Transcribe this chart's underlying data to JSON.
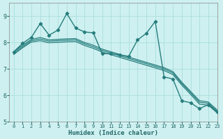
{
  "background_color": "#cef0f0",
  "grid_color": "#aadddd",
  "line_color": "#267d7d",
  "xlabel": "Humidex (Indice chaleur)",
  "xlim": [
    -0.5,
    23
  ],
  "ylim": [
    5,
    9.5
  ],
  "yticks": [
    5,
    6,
    7,
    8,
    9
  ],
  "xticks": [
    0,
    1,
    2,
    3,
    4,
    5,
    6,
    7,
    8,
    9,
    10,
    11,
    12,
    13,
    14,
    15,
    16,
    17,
    18,
    19,
    20,
    21,
    22,
    23
  ],
  "series": [
    {
      "x": [
        0,
        1,
        2,
        3,
        4,
        5,
        6,
        7,
        8,
        9,
        10,
        11,
        12,
        13,
        14,
        15,
        16,
        17,
        18,
        19,
        20,
        21,
        22,
        23
      ],
      "y": [
        7.65,
        7.97,
        8.2,
        8.72,
        8.28,
        8.47,
        9.1,
        8.55,
        8.4,
        8.37,
        7.58,
        7.58,
        7.53,
        7.48,
        8.1,
        8.35,
        8.8,
        6.7,
        6.62,
        5.8,
        5.72,
        5.5,
        5.65,
        5.38
      ],
      "marker": true,
      "lw": 1.0
    },
    {
      "x": [
        0,
        1,
        2,
        3,
        4,
        5,
        6,
        7,
        8,
        9,
        10,
        11,
        12,
        13,
        14,
        15,
        16,
        17,
        18,
        19,
        20,
        21,
        22,
        23
      ],
      "y": [
        7.65,
        7.9,
        8.12,
        8.19,
        8.1,
        8.12,
        8.14,
        8.15,
        8.0,
        7.9,
        7.75,
        7.65,
        7.55,
        7.45,
        7.35,
        7.25,
        7.15,
        7.05,
        6.9,
        6.5,
        6.15,
        5.8,
        5.75,
        5.45
      ],
      "marker": false,
      "lw": 0.9
    },
    {
      "x": [
        0,
        1,
        2,
        3,
        4,
        5,
        6,
        7,
        8,
        9,
        10,
        11,
        12,
        13,
        14,
        15,
        16,
        17,
        18,
        19,
        20,
        21,
        22,
        23
      ],
      "y": [
        7.6,
        7.85,
        8.07,
        8.13,
        8.05,
        8.07,
        8.09,
        8.1,
        7.95,
        7.84,
        7.7,
        7.6,
        7.5,
        7.4,
        7.3,
        7.2,
        7.1,
        7.0,
        6.85,
        6.45,
        6.1,
        5.74,
        5.7,
        5.4
      ],
      "marker": false,
      "lw": 0.9
    },
    {
      "x": [
        0,
        1,
        2,
        3,
        4,
        5,
        6,
        7,
        8,
        9,
        10,
        11,
        12,
        13,
        14,
        15,
        16,
        17,
        18,
        19,
        20,
        21,
        22,
        23
      ],
      "y": [
        7.55,
        7.8,
        8.02,
        8.07,
        7.99,
        8.01,
        8.03,
        8.04,
        7.89,
        7.78,
        7.64,
        7.54,
        7.44,
        7.34,
        7.24,
        7.14,
        7.04,
        6.94,
        6.79,
        6.39,
        6.04,
        5.67,
        5.63,
        5.34
      ],
      "marker": false,
      "lw": 0.9
    }
  ]
}
